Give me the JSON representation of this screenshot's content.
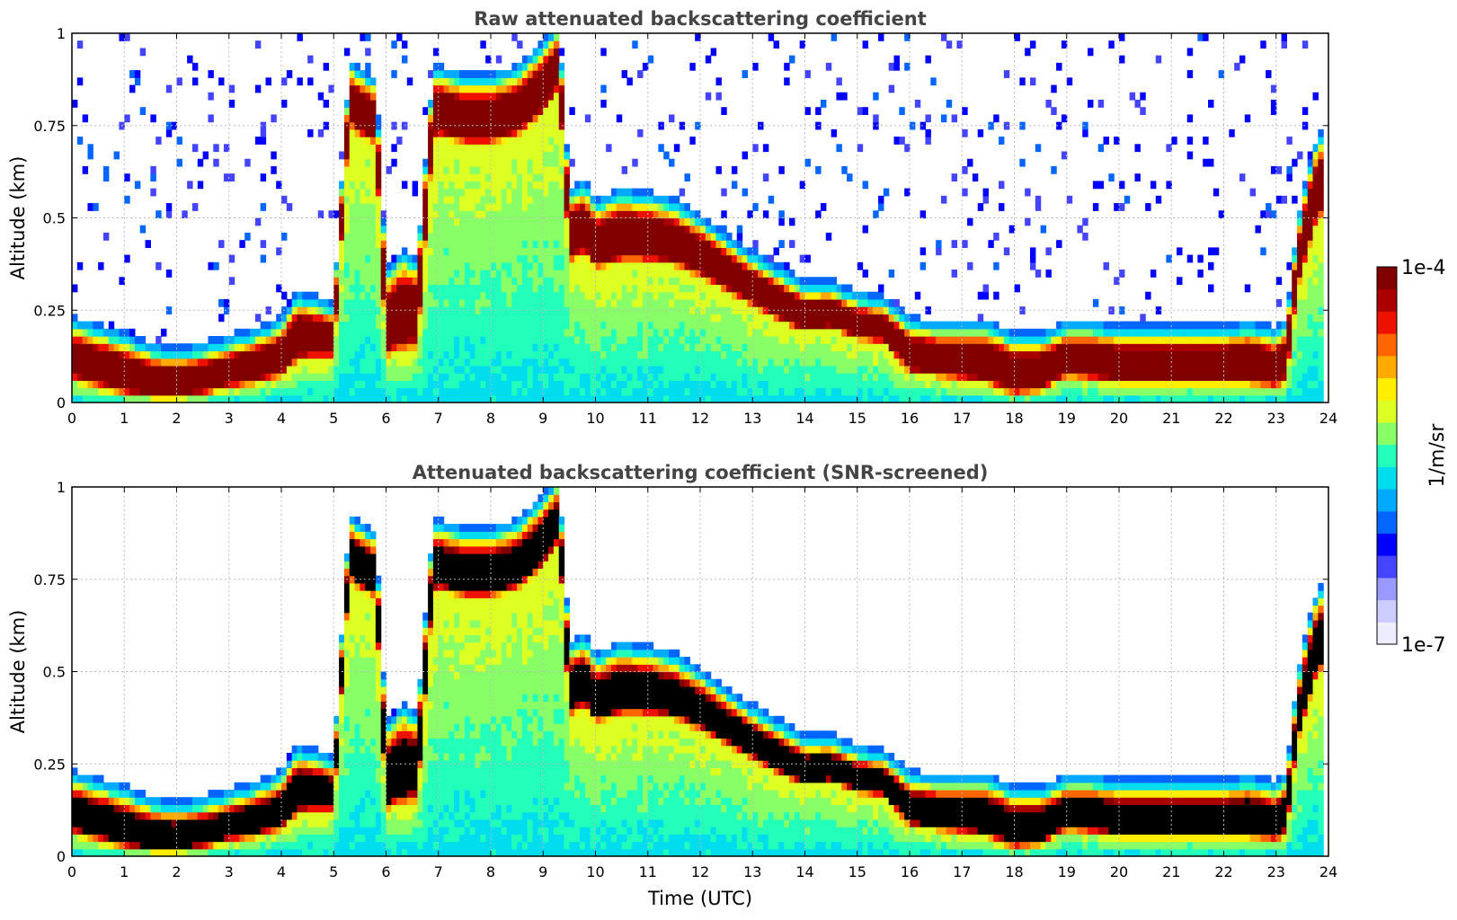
{
  "chart_data": [
    {
      "type": "heatmap",
      "title": "Raw attenuated backscattering coefficient",
      "xlabel": "",
      "ylabel": "Altitude (km)",
      "xlim": [
        0,
        24
      ],
      "ylim": [
        0,
        1
      ],
      "x_ticks": [
        0,
        1,
        2,
        3,
        4,
        5,
        6,
        7,
        8,
        9,
        10,
        11,
        12,
        13,
        14,
        15,
        16,
        17,
        18,
        19,
        20,
        21,
        22,
        23,
        24
      ],
      "y_ticks": [
        0,
        0.25,
        0.5,
        0.75,
        1
      ],
      "y_tick_labels": [
        "0",
        "0.25",
        "0.5",
        "0.75",
        "1"
      ],
      "grid": true,
      "screened": false,
      "layer_top_km": {
        "x": [
          0,
          0.5,
          1,
          1.5,
          2,
          2.5,
          3,
          3.5,
          4,
          4.3,
          4.6,
          5,
          5.3,
          5.5,
          5.8,
          6,
          6.3,
          6.6,
          6.9,
          7,
          7.5,
          8,
          8.5,
          9,
          9.3,
          9.5,
          9.8,
          10,
          10.5,
          11,
          11.5,
          12,
          12.5,
          13,
          13.5,
          14,
          14.5,
          15,
          15.5,
          16,
          16.5,
          17,
          17.5,
          18,
          18.5,
          19,
          19.5,
          20,
          20.5,
          21,
          21.5,
          22,
          22.5,
          23,
          23.2,
          23.4,
          23.6,
          23.8
        ],
        "y": [
          0.2,
          0.18,
          0.16,
          0.13,
          0.12,
          0.13,
          0.15,
          0.17,
          0.2,
          0.27,
          0.26,
          0.24,
          0.9,
          0.88,
          0.85,
          0.33,
          0.38,
          0.36,
          0.88,
          0.88,
          0.86,
          0.86,
          0.88,
          0.95,
          1.0,
          0.55,
          0.57,
          0.52,
          0.55,
          0.54,
          0.52,
          0.48,
          0.43,
          0.38,
          0.34,
          0.3,
          0.3,
          0.27,
          0.26,
          0.2,
          0.19,
          0.19,
          0.19,
          0.16,
          0.16,
          0.19,
          0.19,
          0.18,
          0.18,
          0.18,
          0.18,
          0.18,
          0.19,
          0.17,
          0.2,
          0.45,
          0.6,
          0.7
        ]
      },
      "layer_bottom_km": {
        "x": [
          0,
          0.5,
          1,
          1.5,
          2,
          2.5,
          3,
          3.5,
          4,
          4.3,
          4.6,
          5,
          5.3,
          5.5,
          5.8,
          6,
          6.3,
          6.6,
          6.9,
          7,
          7.5,
          8,
          8.5,
          9,
          9.3,
          9.5,
          9.8,
          10,
          10.5,
          11,
          11.5,
          12,
          12.5,
          13,
          13.5,
          14,
          14.5,
          15,
          15.5,
          16,
          16.5,
          17,
          17.5,
          18,
          18.5,
          19,
          19.5,
          20,
          20.5,
          21,
          21.5,
          22,
          22.5,
          23,
          23.2,
          23.4,
          23.6,
          23.8
        ],
        "y": [
          0.06,
          0.04,
          0.02,
          0.01,
          0.01,
          0.02,
          0.04,
          0.05,
          0.07,
          0.11,
          0.12,
          0.12,
          0.75,
          0.72,
          0.7,
          0.12,
          0.14,
          0.15,
          0.7,
          0.72,
          0.7,
          0.7,
          0.72,
          0.78,
          0.85,
          0.38,
          0.4,
          0.36,
          0.38,
          0.38,
          0.37,
          0.34,
          0.3,
          0.26,
          0.22,
          0.19,
          0.2,
          0.17,
          0.16,
          0.08,
          0.07,
          0.06,
          0.05,
          0.02,
          0.03,
          0.07,
          0.06,
          0.05,
          0.05,
          0.05,
          0.05,
          0.05,
          0.05,
          0.04,
          0.06,
          0.3,
          0.4,
          0.5
        ]
      }
    },
    {
      "type": "heatmap",
      "title": "Attenuated backscattering coefficient (SNR-screened)",
      "xlabel": "Time (UTC)",
      "ylabel": "Altitude (km)",
      "xlim": [
        0,
        24
      ],
      "ylim": [
        0,
        1
      ],
      "x_ticks": [
        0,
        1,
        2,
        3,
        4,
        5,
        6,
        7,
        8,
        9,
        10,
        11,
        12,
        13,
        14,
        15,
        16,
        17,
        18,
        19,
        20,
        21,
        22,
        23,
        24
      ],
      "y_ticks": [
        0,
        0.25,
        0.5,
        0.75,
        1
      ],
      "y_tick_labels": [
        "0",
        "0.25",
        "0.5",
        "0.75",
        "1"
      ],
      "grid": true,
      "screened": true
    }
  ],
  "colorbar": {
    "label": "1/m/sr",
    "min_label": "1e-7",
    "max_label": "1e-4",
    "min": 1e-07,
    "max": 0.0001,
    "scale": "log",
    "colormap": [
      "#eeeeff",
      "#ccccff",
      "#9999ff",
      "#4444ff",
      "#0000ff",
      "#0066ff",
      "#00aaff",
      "#00ddee",
      "#22ffbb",
      "#88ff66",
      "#ddff22",
      "#ffee00",
      "#ffaa00",
      "#ff6600",
      "#ee1100",
      "#aa0000",
      "#800000"
    ]
  },
  "colors": {
    "saturated_raw": "#800000",
    "saturated_screened": "#000000",
    "grid": "#bbbbbb"
  }
}
